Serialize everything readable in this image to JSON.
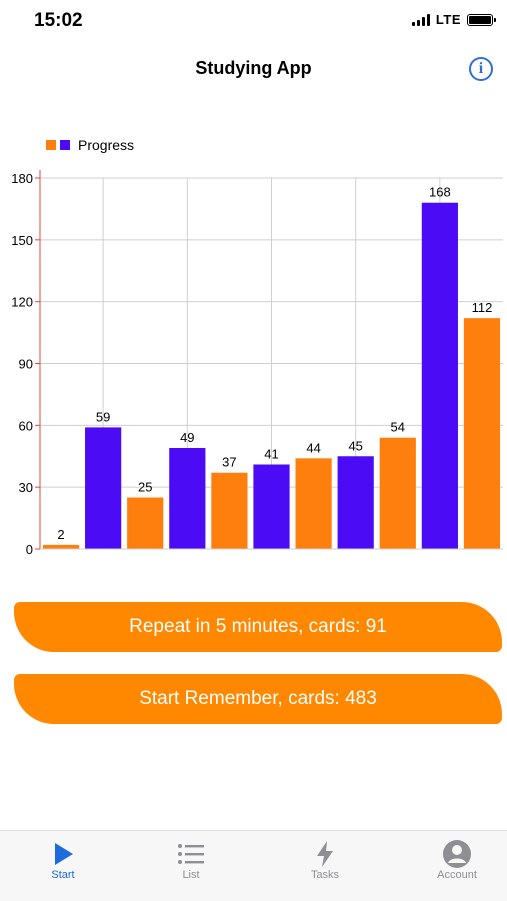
{
  "status": {
    "time": "15:02",
    "network": "LTE"
  },
  "nav": {
    "title": "Studying App",
    "info_icon": "info-icon"
  },
  "chart_data": {
    "type": "bar",
    "title": "",
    "legend": [
      {
        "label": "Progress",
        "colors": [
          "#ff7f0e",
          "#4b0bf5"
        ]
      }
    ],
    "legend_position": "top-left",
    "values": [
      2,
      59,
      25,
      49,
      37,
      41,
      44,
      45,
      54,
      168,
      112
    ],
    "bar_colors": [
      "#ff7f0e",
      "#4b0bf5",
      "#ff7f0e",
      "#4b0bf5",
      "#ff7f0e",
      "#4b0bf5",
      "#ff7f0e",
      "#4b0bf5",
      "#ff7f0e",
      "#4b0bf5",
      "#ff7f0e"
    ],
    "ylim": [
      0,
      180
    ],
    "yticks": [
      0,
      30,
      60,
      90,
      120,
      150,
      180
    ],
    "grid": true,
    "axis_color": "#e0483b"
  },
  "actions": {
    "repeat_label": "Repeat in 5 minutes, cards: 91",
    "remember_label": "Start Remember, cards: 483",
    "color": "#ff8800"
  },
  "tabs": [
    {
      "label": "Start",
      "icon": "play-icon",
      "active": true
    },
    {
      "label": "List",
      "icon": "list-icon",
      "active": false
    },
    {
      "label": "Tasks",
      "icon": "bolt-icon",
      "active": false
    },
    {
      "label": "Account",
      "icon": "account-icon",
      "active": false
    }
  ],
  "colors": {
    "accent": "#1e6bdb",
    "inactive": "#8e8e93"
  }
}
